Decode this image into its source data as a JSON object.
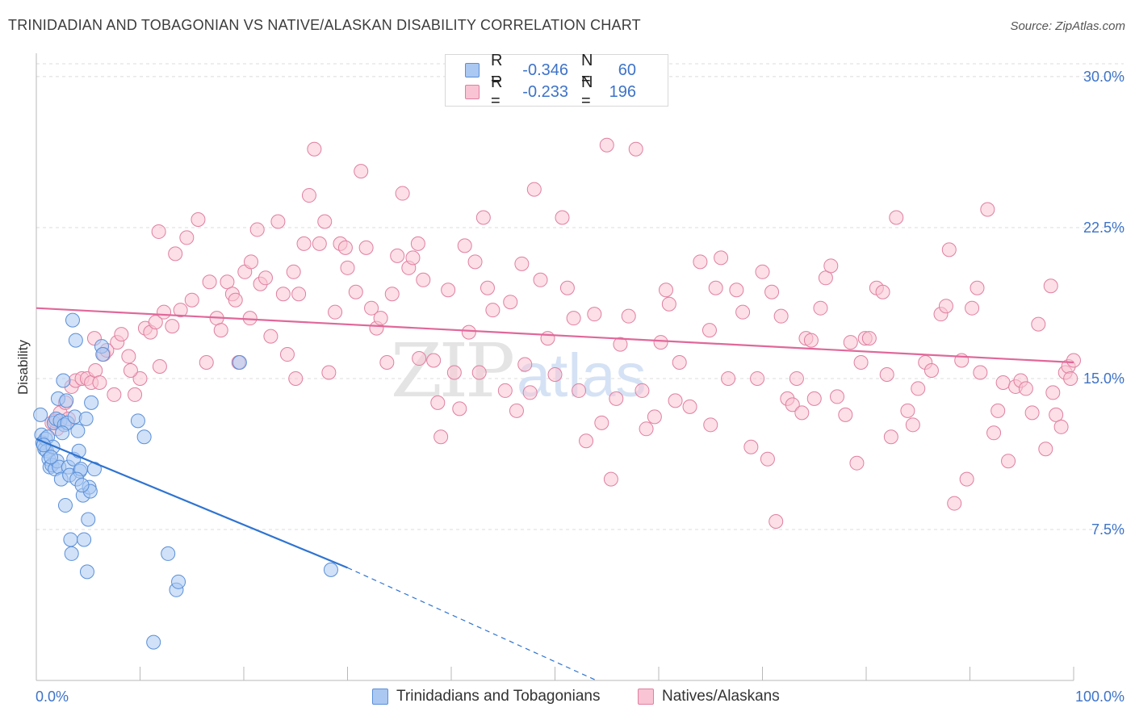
{
  "title": "TRINIDADIAN AND TOBAGONIAN VS NATIVE/ALASKAN DISABILITY CORRELATION CHART",
  "source": "Source: ZipAtlas.com",
  "watermark": {
    "zip": "ZIP",
    "atlas": "atlas"
  },
  "legend": {
    "rows": [
      {
        "r_label": "R =",
        "r_value": "-0.346",
        "n_label": "N =",
        "n_value": "60",
        "color": "#aac8f2",
        "border": "#5a8fd8"
      },
      {
        "r_label": "R =",
        "r_value": "-0.233",
        "n_label": "N =",
        "n_value": "196",
        "color": "#f9c4d4",
        "border": "#e07fa0"
      }
    ]
  },
  "bottom_legend": [
    {
      "label": "Trinidadians and Tobagonians",
      "color": "#aac8f2",
      "border": "#5a8fd8"
    },
    {
      "label": "Natives/Alaskans",
      "color": "#f9c4d4",
      "border": "#e07fa0"
    }
  ],
  "chart_data": {
    "type": "scatter",
    "title": "TRINIDADIAN AND TOBAGONIAN VS NATIVE/ALASKAN DISABILITY CORRELATION CHART",
    "xlabel": "",
    "ylabel": "Disability",
    "xlim": [
      0,
      100
    ],
    "ylim": [
      0,
      31
    ],
    "x_tick_labels": [
      {
        "value": 0,
        "label": "0.0%"
      },
      {
        "value": 100,
        "label": "100.0%"
      }
    ],
    "y_ticks": [
      {
        "value": 7.5,
        "label": "7.5%"
      },
      {
        "value": 15,
        "label": "15.0%"
      },
      {
        "value": 22.5,
        "label": "22.5%"
      },
      {
        "value": 30,
        "label": "30.0%"
      }
    ],
    "x_minor_ticks": [
      10,
      20,
      30,
      40,
      50,
      60,
      70,
      80,
      90,
      100
    ],
    "grid": true,
    "series": [
      {
        "name": "Trinidadians and Tobagonians",
        "color": "#5a8fd8",
        "fill": "#aac8f2",
        "trend": {
          "x0": 0,
          "y0": 12.0,
          "x1": 30,
          "y1": 5.6,
          "dash_to_x": 54,
          "dash_to_y": 0.0
        },
        "points": [
          [
            0.5,
            12.2
          ],
          [
            0.6,
            11.8
          ],
          [
            0.8,
            11.5
          ],
          [
            0.9,
            12.0
          ],
          [
            1.0,
            11.4
          ],
          [
            1.1,
            12.1
          ],
          [
            1.2,
            11.0
          ],
          [
            1.3,
            10.6
          ],
          [
            1.5,
            10.7
          ],
          [
            1.6,
            11.6
          ],
          [
            1.7,
            12.8
          ],
          [
            1.8,
            10.5
          ],
          [
            1.9,
            13.0
          ],
          [
            2.0,
            10.9
          ],
          [
            2.1,
            14.0
          ],
          [
            2.2,
            10.6
          ],
          [
            2.3,
            12.9
          ],
          [
            2.4,
            10.0
          ],
          [
            2.6,
            14.9
          ],
          [
            2.7,
            12.7
          ],
          [
            2.8,
            8.7
          ],
          [
            2.9,
            13.9
          ],
          [
            3.0,
            12.8
          ],
          [
            3.1,
            10.6
          ],
          [
            3.2,
            10.2
          ],
          [
            3.3,
            7.0
          ],
          [
            3.4,
            6.3
          ],
          [
            3.5,
            17.9
          ],
          [
            3.6,
            11.0
          ],
          [
            3.7,
            13.1
          ],
          [
            3.8,
            16.9
          ],
          [
            4.0,
            12.4
          ],
          [
            4.1,
            11.4
          ],
          [
            4.2,
            10.4
          ],
          [
            4.3,
            10.5
          ],
          [
            4.5,
            9.2
          ],
          [
            4.6,
            7.0
          ],
          [
            4.8,
            13.0
          ],
          [
            4.9,
            5.4
          ],
          [
            5.0,
            8.0
          ],
          [
            5.1,
            9.6
          ],
          [
            5.2,
            9.4
          ],
          [
            5.3,
            13.8
          ],
          [
            5.6,
            10.5
          ],
          [
            6.3,
            16.6
          ],
          [
            6.4,
            16.2
          ],
          [
            9.8,
            12.9
          ],
          [
            10.4,
            12.1
          ],
          [
            11.3,
            1.9
          ],
          [
            12.7,
            6.3
          ],
          [
            13.5,
            4.5
          ],
          [
            13.7,
            4.9
          ],
          [
            19.6,
            15.8
          ],
          [
            28.4,
            5.5
          ],
          [
            0.4,
            13.2
          ],
          [
            0.7,
            11.7
          ],
          [
            1.4,
            11.1
          ],
          [
            2.5,
            12.3
          ],
          [
            3.9,
            10.0
          ],
          [
            4.4,
            9.7
          ]
        ]
      },
      {
        "name": "Natives/Alaskans",
        "color": "#e07fa0",
        "fill": "#f9c4d4",
        "trend": {
          "x0": 0,
          "y0": 18.5,
          "x1": 100,
          "y1": 15.8
        },
        "points": [
          [
            1.5,
            12.8
          ],
          [
            2.0,
            12.5
          ],
          [
            2.3,
            13.3
          ],
          [
            2.8,
            13.8
          ],
          [
            3.4,
            14.6
          ],
          [
            3.8,
            14.9
          ],
          [
            4.4,
            15.0
          ],
          [
            4.9,
            15.0
          ],
          [
            5.3,
            14.8
          ],
          [
            5.7,
            15.4
          ],
          [
            6.1,
            14.8
          ],
          [
            6.5,
            16.2
          ],
          [
            7.5,
            14.2
          ],
          [
            7.8,
            16.8
          ],
          [
            8.2,
            17.2
          ],
          [
            8.9,
            16.1
          ],
          [
            9.5,
            14.2
          ],
          [
            10.0,
            15.0
          ],
          [
            10.5,
            17.5
          ],
          [
            11.0,
            17.3
          ],
          [
            11.5,
            17.8
          ],
          [
            11.9,
            15.6
          ],
          [
            12.3,
            18.3
          ],
          [
            13.1,
            17.6
          ],
          [
            13.9,
            18.4
          ],
          [
            14.5,
            22.0
          ],
          [
            15.0,
            18.9
          ],
          [
            15.6,
            22.9
          ],
          [
            16.4,
            15.8
          ],
          [
            16.7,
            19.8
          ],
          [
            17.4,
            18.0
          ],
          [
            17.8,
            17.4
          ],
          [
            18.4,
            19.8
          ],
          [
            18.9,
            19.2
          ],
          [
            19.2,
            18.9
          ],
          [
            19.5,
            15.8
          ],
          [
            20.1,
            20.3
          ],
          [
            20.6,
            18.0
          ],
          [
            21.3,
            22.4
          ],
          [
            21.6,
            19.7
          ],
          [
            22.1,
            20.0
          ],
          [
            22.6,
            17.1
          ],
          [
            23.3,
            22.8
          ],
          [
            23.8,
            19.2
          ],
          [
            24.2,
            16.2
          ],
          [
            24.8,
            20.3
          ],
          [
            25.3,
            19.2
          ],
          [
            25.8,
            21.7
          ],
          [
            26.3,
            24.1
          ],
          [
            26.8,
            26.4
          ],
          [
            27.3,
            21.7
          ],
          [
            27.8,
            22.8
          ],
          [
            28.2,
            15.3
          ],
          [
            28.8,
            18.3
          ],
          [
            29.3,
            21.7
          ],
          [
            29.8,
            21.5
          ],
          [
            30.8,
            19.3
          ],
          [
            31.3,
            25.3
          ],
          [
            31.8,
            21.5
          ],
          [
            32.3,
            18.5
          ],
          [
            32.8,
            17.5
          ],
          [
            33.2,
            18.0
          ],
          [
            33.8,
            15.8
          ],
          [
            34.3,
            19.2
          ],
          [
            34.8,
            21.1
          ],
          [
            35.3,
            24.2
          ],
          [
            35.9,
            20.5
          ],
          [
            36.3,
            21.0
          ],
          [
            36.8,
            21.7
          ],
          [
            37.3,
            19.9
          ],
          [
            38.3,
            15.9
          ],
          [
            38.7,
            13.8
          ],
          [
            39.0,
            12.1
          ],
          [
            39.7,
            19.4
          ],
          [
            40.3,
            15.3
          ],
          [
            40.8,
            13.5
          ],
          [
            41.3,
            21.6
          ],
          [
            41.7,
            17.3
          ],
          [
            42.3,
            20.8
          ],
          [
            42.7,
            15.3
          ],
          [
            43.1,
            23.0
          ],
          [
            43.5,
            19.5
          ],
          [
            44.0,
            18.4
          ],
          [
            45.2,
            14.4
          ],
          [
            45.7,
            18.8
          ],
          [
            46.3,
            13.4
          ],
          [
            46.8,
            20.7
          ],
          [
            47.6,
            14.3
          ],
          [
            48.0,
            24.4
          ],
          [
            48.6,
            19.9
          ],
          [
            49.3,
            17.0
          ],
          [
            50.0,
            15.2
          ],
          [
            50.7,
            23.0
          ],
          [
            51.2,
            19.5
          ],
          [
            51.8,
            18.0
          ],
          [
            52.3,
            14.4
          ],
          [
            53.0,
            11.9
          ],
          [
            53.8,
            18.2
          ],
          [
            54.5,
            12.8
          ],
          [
            55.0,
            26.6
          ],
          [
            55.4,
            10.0
          ],
          [
            56.3,
            16.7
          ],
          [
            57.1,
            18.1
          ],
          [
            57.8,
            26.4
          ],
          [
            58.4,
            14.4
          ],
          [
            58.8,
            12.5
          ],
          [
            59.6,
            13.1
          ],
          [
            60.7,
            19.4
          ],
          [
            61.0,
            18.7
          ],
          [
            61.6,
            13.9
          ],
          [
            62.0,
            15.8
          ],
          [
            63.0,
            13.6
          ],
          [
            64.0,
            20.8
          ],
          [
            64.9,
            17.4
          ],
          [
            65.5,
            19.5
          ],
          [
            66.0,
            21.0
          ],
          [
            66.7,
            15.0
          ],
          [
            67.5,
            19.4
          ],
          [
            68.1,
            18.3
          ],
          [
            68.9,
            11.6
          ],
          [
            69.5,
            15.0
          ],
          [
            70.0,
            20.3
          ],
          [
            70.5,
            11.0
          ],
          [
            70.9,
            19.3
          ],
          [
            71.3,
            7.9
          ],
          [
            71.8,
            18.1
          ],
          [
            72.4,
            14.0
          ],
          [
            72.9,
            13.7
          ],
          [
            73.3,
            15.0
          ],
          [
            74.2,
            17.0
          ],
          [
            75.0,
            14.0
          ],
          [
            75.6,
            18.5
          ],
          [
            76.1,
            20.0
          ],
          [
            76.6,
            20.6
          ],
          [
            77.2,
            14.1
          ],
          [
            78.0,
            13.2
          ],
          [
            78.5,
            16.8
          ],
          [
            79.1,
            10.8
          ],
          [
            79.5,
            15.8
          ],
          [
            79.9,
            17.0
          ],
          [
            80.3,
            17.0
          ],
          [
            81.0,
            19.5
          ],
          [
            81.6,
            19.3
          ],
          [
            82.0,
            15.2
          ],
          [
            82.4,
            12.1
          ],
          [
            82.9,
            23.0
          ],
          [
            84.0,
            13.4
          ],
          [
            84.5,
            12.7
          ],
          [
            85.0,
            14.5
          ],
          [
            85.7,
            15.8
          ],
          [
            86.3,
            15.4
          ],
          [
            87.2,
            18.2
          ],
          [
            87.7,
            18.6
          ],
          [
            88.0,
            21.4
          ],
          [
            88.5,
            8.8
          ],
          [
            89.2,
            15.9
          ],
          [
            89.7,
            10.0
          ],
          [
            90.2,
            18.5
          ],
          [
            90.7,
            19.5
          ],
          [
            91.0,
            15.3
          ],
          [
            91.7,
            23.4
          ],
          [
            92.3,
            12.3
          ],
          [
            92.7,
            13.4
          ],
          [
            93.2,
            14.8
          ],
          [
            93.7,
            10.9
          ],
          [
            94.4,
            14.6
          ],
          [
            94.9,
            14.9
          ],
          [
            95.4,
            14.5
          ],
          [
            96.0,
            13.3
          ],
          [
            96.6,
            17.7
          ],
          [
            97.3,
            11.5
          ],
          [
            97.8,
            19.6
          ],
          [
            98.0,
            14.3
          ],
          [
            98.3,
            13.2
          ],
          [
            98.8,
            12.6
          ],
          [
            99.2,
            15.3
          ],
          [
            99.5,
            15.6
          ],
          [
            99.7,
            15.0
          ],
          [
            100.0,
            15.9
          ],
          [
            74.7,
            16.9
          ],
          [
            73.8,
            13.3
          ],
          [
            60.2,
            16.8
          ],
          [
            47.1,
            15.7
          ],
          [
            36.9,
            16.0
          ],
          [
            30.0,
            20.5
          ],
          [
            20.7,
            20.8
          ],
          [
            13.4,
            21.2
          ],
          [
            9.1,
            15.4
          ],
          [
            11.8,
            22.3
          ],
          [
            5.6,
            17.0
          ],
          [
            3.1,
            13.0
          ],
          [
            1.8,
            12.9
          ],
          [
            6.8,
            16.4
          ],
          [
            55.9,
            14.0
          ],
          [
            65.0,
            12.7
          ],
          [
            25.0,
            15.0
          ]
        ]
      }
    ]
  }
}
